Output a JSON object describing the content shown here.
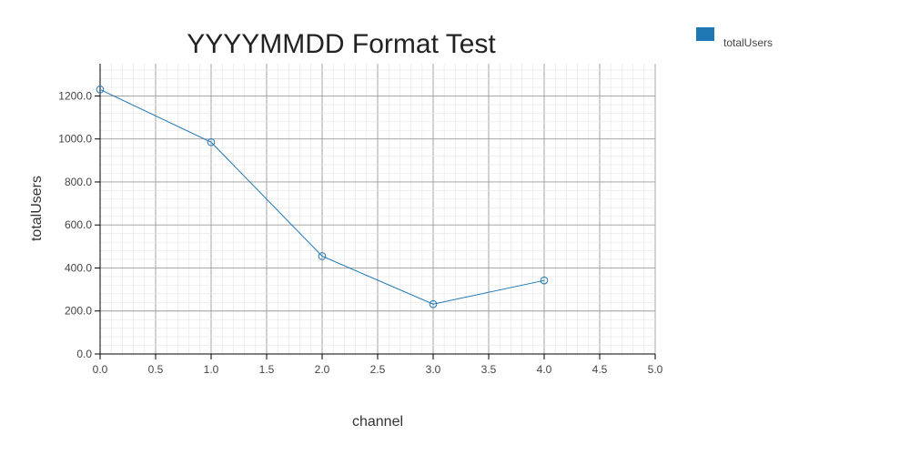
{
  "chart_data": {
    "type": "line",
    "title": "YYYYMMDD Format Test",
    "xlabel": "channel",
    "ylabel": "totalUsers",
    "xlim": [
      0,
      5
    ],
    "ylim": [
      0,
      1350
    ],
    "x_ticks": [
      "0.0",
      "0.5",
      "1.0",
      "1.5",
      "2.0",
      "2.5",
      "3.0",
      "3.5",
      "4.0",
      "4.5",
      "5.0"
    ],
    "y_ticks": [
      "0.0",
      "200.0",
      "400.0",
      "600.0",
      "800.0",
      "1000.0",
      "1200.0"
    ],
    "grid": true,
    "legend_position": "top-right",
    "series": [
      {
        "name": "totalUsers",
        "color": "#1f77b4",
        "x": [
          0,
          1,
          2,
          3,
          4
        ],
        "y": [
          1230,
          985,
          455,
          232,
          342
        ]
      }
    ]
  }
}
